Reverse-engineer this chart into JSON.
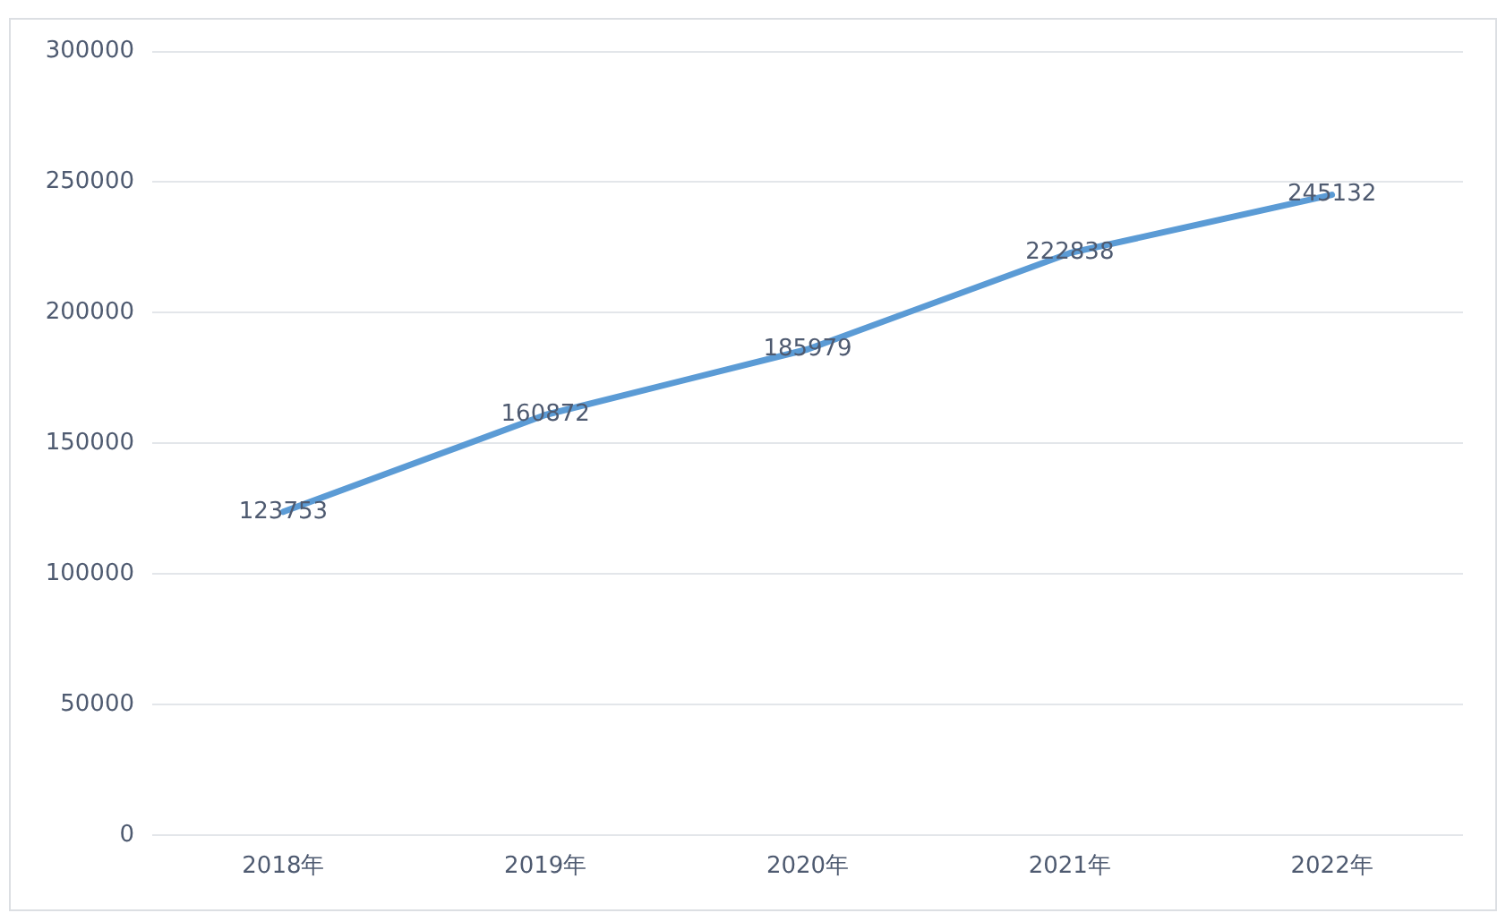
{
  "chart_data": {
    "type": "line",
    "categories": [
      "2018年",
      "2019年",
      "2020年",
      "2021年",
      "2022年"
    ],
    "series": [
      {
        "color": "#5b9bd5",
        "values": [
          123753,
          160872,
          185979,
          222838,
          245132
        ]
      }
    ],
    "ylim": [
      0,
      300000
    ],
    "yticks": [
      0,
      50000,
      100000,
      150000,
      200000,
      250000,
      300000
    ],
    "grid": "y",
    "legend": false,
    "marker": "none",
    "line_style": "solid",
    "data_labels": true
  }
}
